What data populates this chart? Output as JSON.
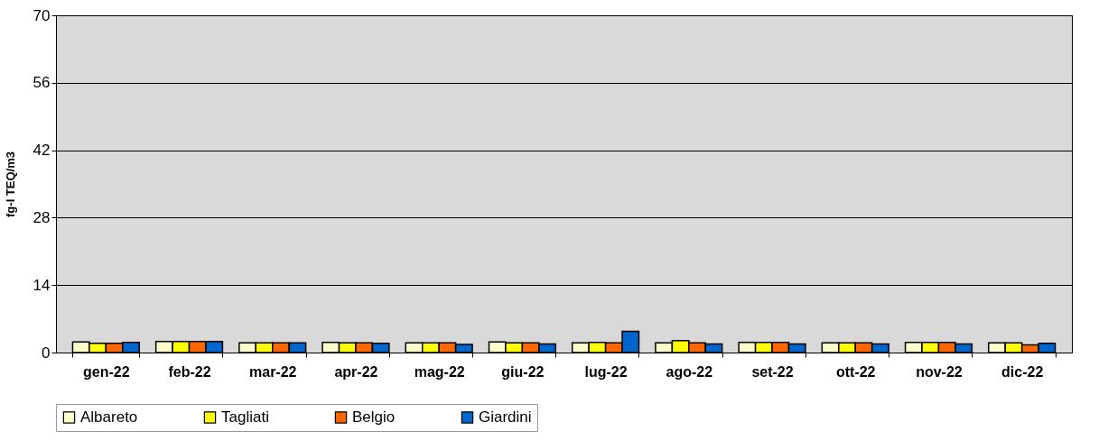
{
  "chart_data": {
    "type": "bar",
    "ylabel": "fg-I TEQ/m3",
    "categories": [
      "gen-22",
      "feb-22",
      "mar-22",
      "apr-22",
      "mag-22",
      "giu-22",
      "lug-22",
      "ago-22",
      "set-22",
      "ott-22",
      "nov-22",
      "dic-22"
    ],
    "series": [
      {
        "name": "Albareto",
        "color": "#ffffcc",
        "values": [
          2.2,
          2.3,
          2.0,
          2.1,
          2.0,
          2.2,
          2.0,
          2.0,
          2.1,
          2.0,
          2.1,
          2.0
        ]
      },
      {
        "name": "Tagliati",
        "color": "#ffff00",
        "values": [
          1.9,
          2.3,
          2.0,
          2.0,
          2.0,
          2.0,
          2.1,
          2.5,
          2.1,
          2.0,
          2.1,
          2.0
        ]
      },
      {
        "name": "Belgio",
        "color": "#ff6600",
        "values": [
          1.9,
          2.3,
          2.0,
          2.0,
          2.0,
          2.0,
          2.0,
          2.0,
          2.1,
          2.0,
          2.1,
          1.6
        ]
      },
      {
        "name": "Giardini",
        "color": "#0066cc",
        "values": [
          2.1,
          2.3,
          2.0,
          1.9,
          1.7,
          1.8,
          4.4,
          1.8,
          1.8,
          1.8,
          1.8,
          1.9
        ]
      }
    ],
    "ylim": [
      0,
      70
    ],
    "yticks": [
      0,
      14,
      28,
      42,
      56,
      70
    ],
    "grid": "y",
    "legend": "bottom"
  }
}
